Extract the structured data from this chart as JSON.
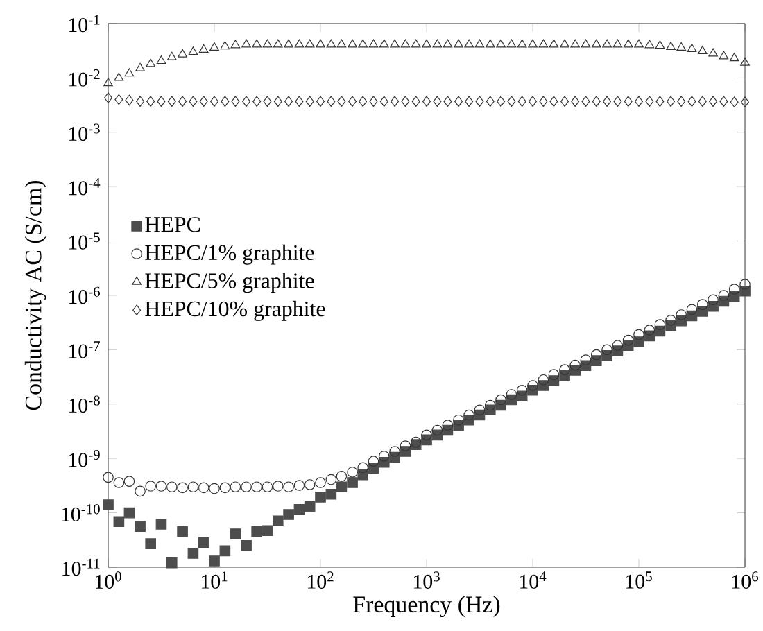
{
  "chart_data": {
    "type": "scatter",
    "xlabel": "Frequency (Hz)",
    "ylabel": "Conductivity AC (S/cm)",
    "log": "xy",
    "legend": "left",
    "grid": false,
    "x": [
      1,
      1.26,
      1.58,
      2,
      2.51,
      3.16,
      3.98,
      5.01,
      6.31,
      7.94,
      10,
      12.6,
      15.8,
      20,
      25.1,
      31.6,
      39.8,
      50.1,
      63.1,
      79.4,
      100,
      126,
      158,
      200,
      251,
      316,
      398,
      501,
      631,
      794,
      1000,
      1260,
      1580,
      2000,
      2510,
      3160,
      3980,
      5010,
      6310,
      7940,
      10000,
      12600,
      15800,
      20000,
      25100,
      31600,
      39800,
      50100,
      63100,
      79400,
      100000,
      126000,
      158000,
      200000,
      251000,
      316000,
      398000,
      501000,
      631000,
      794000,
      1000000
    ],
    "xlim": [
      1,
      1000000
    ],
    "xticks": [
      {
        "value": 1,
        "label": "10$^{0}$"
      },
      {
        "value": 10,
        "label": "10$^{1}$"
      },
      {
        "value": 100,
        "label": "10$^{2}$"
      },
      {
        "value": 1000,
        "label": "10$^{3}$"
      },
      {
        "value": 10000,
        "label": "10$^{4}$"
      },
      {
        "value": 100000,
        "label": "10$^{5}$"
      },
      {
        "value": 1000000,
        "label": "10$^{6}$"
      }
    ],
    "ylim": [
      1e-11,
      0.1
    ],
    "yticks": [
      {
        "value": 1e-11,
        "label": "10$^{-11}$"
      },
      {
        "value": 1e-10,
        "label": "10$^{-10}$"
      },
      {
        "value": 1e-09,
        "label": "10$^{-9}$"
      },
      {
        "value": 1e-08,
        "label": "10$^{-8}$"
      },
      {
        "value": 1e-07,
        "label": "10$^{-7}$"
      },
      {
        "value": 1e-06,
        "label": "10$^{-6}$"
      },
      {
        "value": 1e-05,
        "label": "10$^{-5}$"
      },
      {
        "value": 0.0001,
        "label": "10$^{-4}$"
      },
      {
        "value": 0.001,
        "label": "10$^{-3}$"
      },
      {
        "value": 0.01,
        "label": "10$^{-2}$"
      },
      {
        "value": 0.1,
        "label": "10$^{-1}$"
      }
    ],
    "series": [
      {
        "name": "HEPC",
        "color": "#4d4d4d",
        "marker": "square",
        "values": [
          1.4e-10,
          6.9e-11,
          1e-10,
          5.6e-11,
          2.7e-11,
          6.2e-11,
          1.2e-11,
          4.5e-11,
          1.8e-11,
          2.8e-11,
          1.3e-11,
          2e-11,
          4.1e-11,
          2.5e-11,
          4.5e-11,
          4.7e-11,
          7.1e-11,
          9.3e-11,
          1.15e-10,
          1.3e-10,
          1.95e-10,
          2.2e-10,
          3e-10,
          3.6e-10,
          5e-10,
          6.6e-10,
          8.5e-10,
          1.05e-09,
          1.35e-09,
          1.8e-09,
          2.2e-09,
          2.7e-09,
          3.3e-09,
          4.1e-09,
          5.1e-09,
          6.3e-09,
          7.8e-09,
          9.5e-09,
          1.2e-08,
          1.4e-08,
          1.8e-08,
          2.2e-08,
          2.7e-08,
          3.4e-08,
          4.2e-08,
          5.1e-08,
          6.3e-08,
          7.8e-08,
          9.5e-08,
          1.2e-07,
          1.4e-07,
          1.8e-07,
          2.2e-07,
          2.8e-07,
          3.4e-07,
          4.2e-07,
          5.1e-07,
          6.3e-07,
          7.8e-07,
          9.5e-07,
          1.2e-06
        ]
      },
      {
        "name": "HEPC/1% graphite",
        "color": "#333333",
        "marker": "circle",
        "values": [
          4.5e-10,
          3.6e-10,
          3.8e-10,
          2.5e-10,
          3.1e-10,
          3.1e-10,
          3e-10,
          2.9e-10,
          3e-10,
          2.9e-10,
          2.8e-10,
          2.9e-10,
          3e-10,
          3e-10,
          3e-10,
          3e-10,
          3.1e-10,
          3e-10,
          3.2e-10,
          3.3e-10,
          3.6e-10,
          4.1e-10,
          4.7e-10,
          5.6e-10,
          6.8e-10,
          8.9e-10,
          1.1e-09,
          1.35e-09,
          1.7e-09,
          2e-09,
          2.7e-09,
          3.3e-09,
          4.1e-09,
          5.1e-09,
          6.3e-09,
          7.8e-09,
          9.5e-09,
          1.2e-08,
          1.5e-08,
          1.8e-08,
          2.2e-08,
          2.8e-08,
          3.5e-08,
          4.3e-08,
          5.2e-08,
          6.5e-08,
          8.1e-08,
          1e-07,
          1.2e-07,
          1.5e-07,
          1.9e-07,
          2.3e-07,
          2.9e-07,
          3.5e-07,
          4.4e-07,
          5.5e-07,
          6.8e-07,
          8.3e-07,
          1e-06,
          1.3e-06,
          1.6e-06
        ]
      },
      {
        "name": "HEPC/5% graphite",
        "color": "#333333",
        "marker": "triangle",
        "values": [
          0.008,
          0.01,
          0.012,
          0.015,
          0.018,
          0.0205,
          0.024,
          0.027,
          0.03,
          0.033,
          0.036,
          0.038,
          0.04,
          0.041,
          0.041,
          0.041,
          0.041,
          0.041,
          0.041,
          0.041,
          0.041,
          0.041,
          0.041,
          0.041,
          0.041,
          0.041,
          0.041,
          0.041,
          0.041,
          0.041,
          0.041,
          0.041,
          0.041,
          0.041,
          0.041,
          0.041,
          0.041,
          0.041,
          0.041,
          0.041,
          0.041,
          0.041,
          0.041,
          0.041,
          0.041,
          0.041,
          0.041,
          0.041,
          0.041,
          0.041,
          0.041,
          0.04,
          0.039,
          0.037,
          0.036,
          0.034,
          0.031,
          0.028,
          0.025,
          0.023,
          0.019
        ]
      },
      {
        "name": "HEPC/10% graphite",
        "color": "#333333",
        "marker": "diamond",
        "values": [
          0.0043,
          0.004,
          0.0039,
          0.0037,
          0.0037,
          0.0037,
          0.0037,
          0.0037,
          0.0037,
          0.0037,
          0.0037,
          0.0037,
          0.0037,
          0.0037,
          0.0037,
          0.0037,
          0.0037,
          0.0037,
          0.0037,
          0.0037,
          0.0037,
          0.0037,
          0.0037,
          0.0037,
          0.0037,
          0.0037,
          0.0037,
          0.0037,
          0.0037,
          0.0037,
          0.0037,
          0.0037,
          0.0037,
          0.0037,
          0.0037,
          0.0037,
          0.0037,
          0.0037,
          0.0037,
          0.0037,
          0.0037,
          0.0037,
          0.0037,
          0.0037,
          0.0037,
          0.0037,
          0.0037,
          0.0037,
          0.0037,
          0.0037,
          0.0037,
          0.0037,
          0.0037,
          0.0037,
          0.0037,
          0.0037,
          0.0037,
          0.0037,
          0.0037,
          0.0036,
          0.0036
        ]
      }
    ]
  }
}
